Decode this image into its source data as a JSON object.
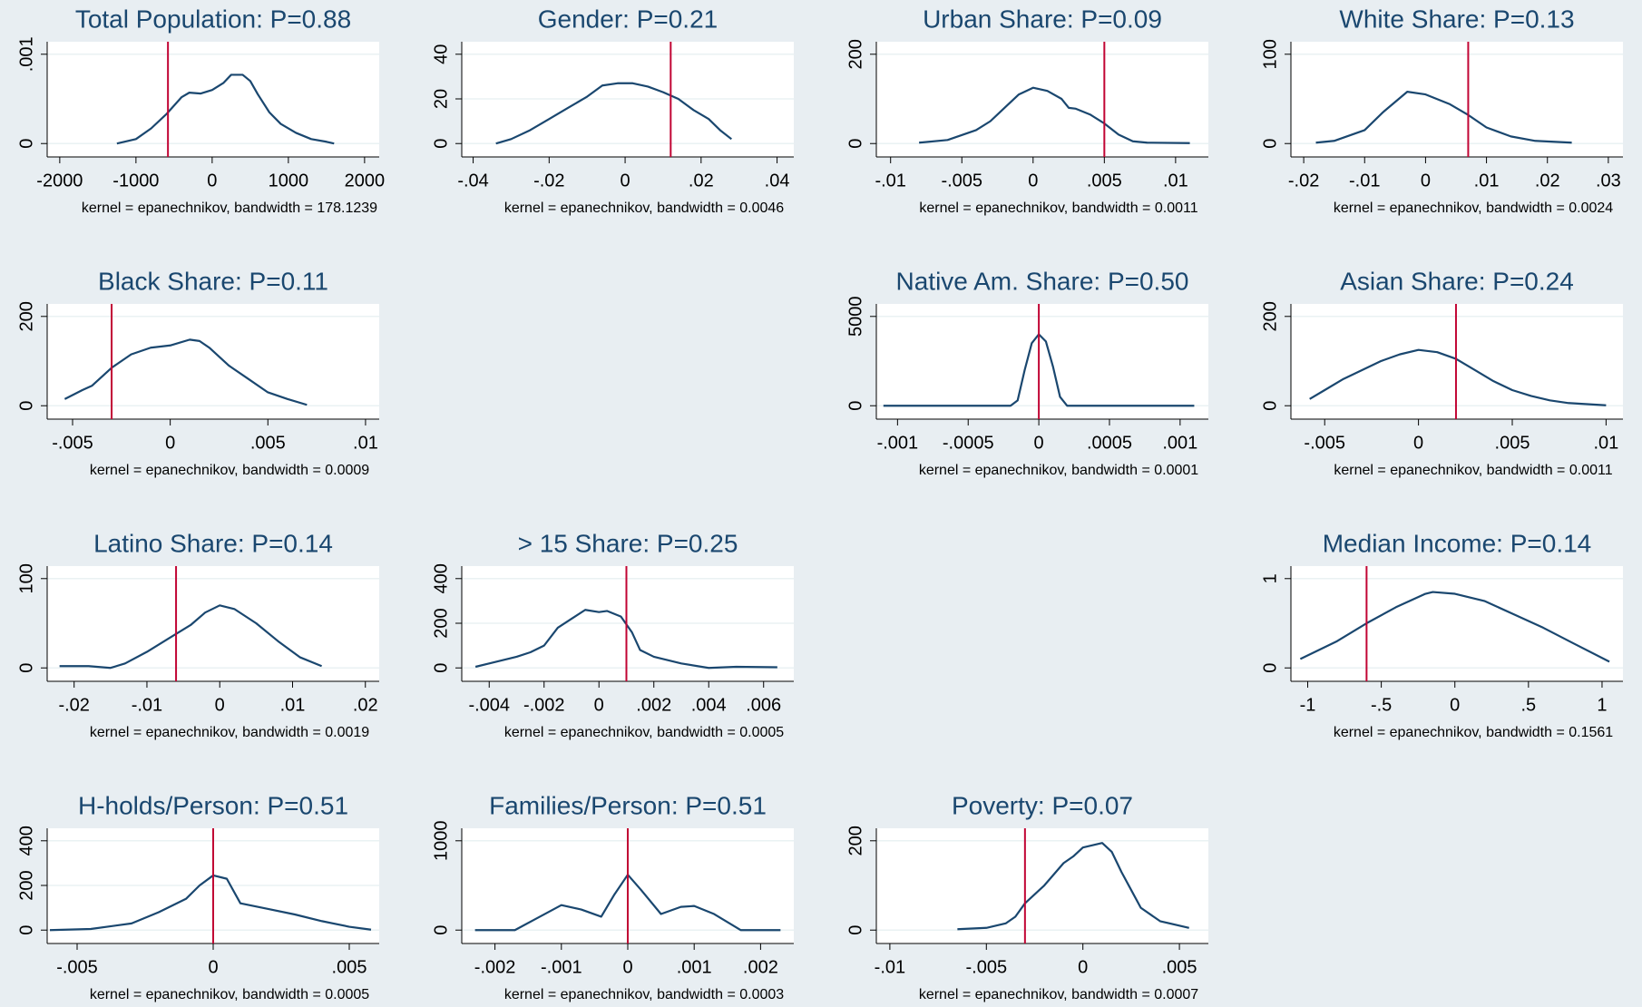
{
  "chart_data": [
    {
      "type": "line",
      "title": "Total Population: P=0.88",
      "note": "kernel = epanechnikov, bandwidth = 178.1239",
      "x": [
        -1250,
        -1000,
        -800,
        -600,
        -400,
        -300,
        -150,
        0,
        150,
        250,
        400,
        500,
        600,
        750,
        900,
        1100,
        1300,
        1500,
        1600
      ],
      "values": [
        0,
        5e-05,
        0.00017,
        0.00033,
        0.00052,
        0.00057,
        0.00056,
        0.0006,
        0.00068,
        0.00077,
        0.00077,
        0.0007,
        0.00055,
        0.00035,
        0.00022,
        0.00012,
        5e-05,
        2e-05,
        0
      ],
      "xlim": [
        -2165,
        2192
      ],
      "ylim": [
        -0.00015,
        0.00114
      ],
      "xticks": [
        -2000,
        -1000,
        0,
        1000,
        2000
      ],
      "yticks": [
        0,
        {
          "value": 0.001,
          "label": ".001"
        }
      ],
      "reference_line": -580,
      "color": "#1a476f",
      "reference_color": "#c10534",
      "grid": true
    },
    {
      "type": "line",
      "title": "Gender: P=0.21",
      "note": "kernel = epanechnikov, bandwidth = 0.0046",
      "x": [
        -0.034,
        -0.03,
        -0.025,
        -0.02,
        -0.015,
        -0.01,
        -0.006,
        -0.002,
        0.002,
        0.006,
        0.01,
        0.014,
        0.018,
        0.022,
        0.025,
        0.028
      ],
      "values": [
        0,
        2,
        6,
        11,
        16,
        21,
        26,
        27,
        27,
        25.5,
        23,
        20,
        15,
        11,
        6,
        2
      ],
      "xlim": [
        -0.043,
        0.0444
      ],
      "ylim": [
        -6,
        45.6
      ],
      "xticks": [
        {
          "value": -0.04,
          "label": "-.04"
        },
        {
          "value": -0.02,
          "label": "-.02"
        },
        0,
        {
          "value": 0.02,
          "label": ".02"
        },
        {
          "value": 0.04,
          "label": ".04"
        }
      ],
      "yticks": [
        0,
        20,
        40
      ],
      "reference_line": 0.012,
      "color": "#1a476f",
      "reference_color": "#c10534",
      "grid": true
    },
    {
      "type": "line",
      "title": "Urban Share: P=0.09",
      "note": "kernel = epanechnikov, bandwidth = 0.0011",
      "x": [
        -0.008,
        -0.006,
        -0.004,
        -0.003,
        -0.002,
        -0.001,
        0,
        0.001,
        0.002,
        0.0025,
        0.003,
        0.004,
        0.005,
        0.006,
        0.007,
        0.008,
        0.011
      ],
      "values": [
        2,
        8,
        30,
        50,
        80,
        110,
        125,
        118,
        100,
        80,
        78,
        65,
        45,
        20,
        5,
        2,
        1
      ],
      "xlim": [
        -0.011,
        0.0123
      ],
      "ylim": [
        -30,
        228
      ],
      "xticks": [
        {
          "value": -0.01,
          "label": "-.01"
        },
        {
          "value": -0.005,
          "label": "-.005"
        },
        0,
        {
          "value": 0.005,
          "label": ".005"
        },
        {
          "value": 0.01,
          "label": ".01"
        }
      ],
      "yticks": [
        0,
        200
      ],
      "reference_line": 0.005,
      "color": "#1a476f",
      "reference_color": "#c10534",
      "grid": true
    },
    {
      "type": "line",
      "title": "White Share: P=0.13",
      "note": "kernel = epanechnikov, bandwidth = 0.0024",
      "x": [
        -0.018,
        -0.015,
        -0.01,
        -0.007,
        -0.003,
        0,
        0.004,
        0.007,
        0.01,
        0.014,
        0.018,
        0.024
      ],
      "values": [
        1,
        3,
        15,
        35,
        58,
        55,
        44,
        32,
        18,
        8,
        3,
        1
      ],
      "xlim": [
        -0.0221,
        0.0324
      ],
      "ylim": [
        -15,
        114
      ],
      "xticks": [
        {
          "value": -0.02,
          "label": "-.02"
        },
        {
          "value": -0.01,
          "label": "-.01"
        },
        0,
        {
          "value": 0.01,
          "label": ".01"
        },
        {
          "value": 0.02,
          "label": ".02"
        },
        {
          "value": 0.03,
          "label": ".03"
        }
      ],
      "yticks": [
        0,
        100
      ],
      "reference_line": 0.007,
      "color": "#1a476f",
      "reference_color": "#c10534",
      "grid": true
    },
    {
      "type": "line",
      "title": "Black Share: P=0.11",
      "note": "kernel = epanechnikov, bandwidth = 0.0009",
      "x": [
        -0.0054,
        -0.0045,
        -0.004,
        -0.003,
        -0.002,
        -0.001,
        0,
        0.001,
        0.0015,
        0.002,
        0.003,
        0.004,
        0.005,
        0.006,
        0.007
      ],
      "values": [
        15,
        35,
        45,
        85,
        115,
        130,
        135,
        148,
        145,
        130,
        90,
        60,
        30,
        15,
        2
      ],
      "xlim": [
        -0.0063,
        0.0107
      ],
      "ylim": [
        -30,
        228
      ],
      "xticks": [
        {
          "value": -0.005,
          "label": "-.005"
        },
        0,
        {
          "value": 0.005,
          "label": ".005"
        },
        {
          "value": 0.01,
          "label": ".01"
        }
      ],
      "yticks": [
        0,
        200
      ],
      "reference_line": -0.003,
      "color": "#1a476f",
      "reference_color": "#c10534",
      "grid": true
    },
    {
      "type": "line",
      "title": "Native Am. Share: P=0.50",
      "note": "kernel = epanechnikov, bandwidth = 0.0001",
      "x": [
        -0.0011,
        -0.0002,
        -0.00015,
        -0.0001,
        -5e-05,
        0,
        5e-05,
        0.0001,
        0.00015,
        0.0002,
        0.0011
      ],
      "values": [
        0,
        0,
        300,
        2000,
        3500,
        4000,
        3600,
        2200,
        500,
        0,
        0
      ],
      "xlim": [
        -0.00115,
        0.0012
      ],
      "ylim": [
        -750,
        5700
      ],
      "xticks": [
        {
          "value": -0.001,
          "label": "-.001"
        },
        {
          "value": -0.0005,
          "label": "-.0005"
        },
        0,
        {
          "value": 0.0005,
          "label": ".0005"
        },
        {
          "value": 0.001,
          "label": ".001"
        }
      ],
      "yticks": [
        0,
        5000
      ],
      "reference_line": 0,
      "color": "#1a476f",
      "reference_color": "#c10534",
      "grid": true
    },
    {
      "type": "line",
      "title": "Asian Share: P=0.24",
      "note": "kernel = epanechnikov, bandwidth = 0.0011",
      "x": [
        -0.0058,
        -0.005,
        -0.004,
        -0.003,
        -0.002,
        -0.001,
        0,
        0.001,
        0.002,
        0.003,
        0.004,
        0.005,
        0.006,
        0.007,
        0.008,
        0.01
      ],
      "values": [
        15,
        35,
        60,
        80,
        100,
        115,
        125,
        120,
        105,
        80,
        55,
        35,
        22,
        12,
        6,
        1
      ],
      "xlim": [
        -0.0068,
        0.0109
      ],
      "ylim": [
        -30,
        228
      ],
      "xticks": [
        {
          "value": -0.005,
          "label": "-.005"
        },
        0,
        {
          "value": 0.005,
          "label": ".005"
        },
        {
          "value": 0.01,
          "label": ".01"
        }
      ],
      "yticks": [
        0,
        200
      ],
      "reference_line": 0.002,
      "color": "#1a476f",
      "reference_color": "#c10534",
      "grid": true
    },
    {
      "type": "line",
      "title": "Latino Share: P=0.14",
      "note": "kernel = epanechnikov, bandwidth = 0.0019",
      "x": [
        -0.022,
        -0.018,
        -0.015,
        -0.013,
        -0.01,
        -0.007,
        -0.004,
        -0.002,
        0,
        0.002,
        0.005,
        0.008,
        0.011,
        0.014
      ],
      "values": [
        2,
        2,
        0,
        5,
        18,
        33,
        48,
        62,
        70,
        66,
        50,
        30,
        12,
        2
      ],
      "xlim": [
        -0.0237,
        0.0219
      ],
      "ylim": [
        -15,
        114
      ],
      "xticks": [
        {
          "value": -0.02,
          "label": "-.02"
        },
        {
          "value": -0.01,
          "label": "-.01"
        },
        0,
        {
          "value": 0.01,
          "label": ".01"
        },
        {
          "value": 0.02,
          "label": ".02"
        }
      ],
      "yticks": [
        0,
        100
      ],
      "reference_line": -0.006,
      "color": "#1a476f",
      "reference_color": "#c10534",
      "grid": true
    },
    {
      "type": "line",
      "title": "> 15 Share: P=0.25",
      "note": "kernel = epanechnikov, bandwidth = 0.0005",
      "x": [
        -0.0045,
        -0.004,
        -0.003,
        -0.0025,
        -0.002,
        -0.0015,
        -0.001,
        -0.0005,
        0,
        0.0003,
        0.0008,
        0.0012,
        0.0015,
        0.002,
        0.003,
        0.004,
        0.005,
        0.0065
      ],
      "values": [
        5,
        20,
        50,
        70,
        100,
        180,
        220,
        260,
        250,
        255,
        230,
        160,
        80,
        50,
        20,
        0,
        5,
        3
      ],
      "xlim": [
        -0.005,
        0.0071
      ],
      "ylim": [
        -60,
        456
      ],
      "xticks": [
        {
          "value": -0.004,
          "label": "-.004"
        },
        {
          "value": -0.002,
          "label": "-.002"
        },
        0,
        {
          "value": 0.002,
          "label": ".002"
        },
        {
          "value": 0.004,
          "label": ".004"
        },
        {
          "value": 0.006,
          "label": ".006"
        }
      ],
      "yticks": [
        0,
        200,
        400
      ],
      "reference_line": 0.001,
      "color": "#1a476f",
      "reference_color": "#c10534",
      "grid": true
    },
    {
      "type": "line",
      "title": "Median Income: P=0.14",
      "note": "kernel = epanechnikov, bandwidth = 0.1561",
      "x": [
        -1.05,
        -0.8,
        -0.6,
        -0.4,
        -0.2,
        -0.15,
        0,
        0.2,
        0.4,
        0.6,
        0.8,
        1.05
      ],
      "values": [
        0.1,
        0.3,
        0.5,
        0.68,
        0.83,
        0.85,
        0.83,
        0.75,
        0.6,
        0.45,
        0.28,
        0.07
      ],
      "xlim": [
        -1.114,
        1.142
      ],
      "ylim": [
        -0.15,
        1.14
      ],
      "xticks": [
        -1,
        {
          "value": -0.5,
          "label": "-.5"
        },
        0,
        {
          "value": 0.5,
          "label": ".5"
        },
        1
      ],
      "yticks": [
        0,
        1
      ],
      "reference_line": -0.6,
      "color": "#1a476f",
      "reference_color": "#c10534",
      "grid": true
    },
    {
      "type": "line",
      "title": "H-holds/Person: P=0.51",
      "note": "kernel = epanechnikov, bandwidth = 0.0005",
      "x": [
        -0.006,
        -0.0045,
        -0.003,
        -0.002,
        -0.001,
        -0.0005,
        0,
        0.0005,
        0.001,
        0.002,
        0.003,
        0.004,
        0.005,
        0.0058
      ],
      "values": [
        0,
        5,
        30,
        80,
        140,
        200,
        245,
        230,
        120,
        95,
        70,
        40,
        15,
        2
      ],
      "xlim": [
        -0.0061,
        0.0061
      ],
      "ylim": [
        -60,
        456
      ],
      "xticks": [
        {
          "value": -0.005,
          "label": "-.005"
        },
        0,
        {
          "value": 0.005,
          "label": ".005"
        }
      ],
      "yticks": [
        0,
        200,
        400
      ],
      "reference_line": 0,
      "color": "#1a476f",
      "reference_color": "#c10534",
      "grid": true
    },
    {
      "type": "line",
      "title": "Families/Person: P=0.51",
      "note": "kernel = epanechnikov, bandwidth = 0.0003",
      "x": [
        -0.0023,
        -0.0017,
        -0.0014,
        -0.001,
        -0.0007,
        -0.0004,
        -0.0002,
        0,
        0.0002,
        0.0005,
        0.0008,
        0.001,
        0.0013,
        0.0017,
        0.0023
      ],
      "values": [
        0,
        0,
        120,
        280,
        230,
        150,
        400,
        620,
        450,
        180,
        260,
        270,
        180,
        0,
        0
      ],
      "xlim": [
        -0.0025,
        0.0025
      ],
      "ylim": [
        -150,
        1140
      ],
      "xticks": [
        {
          "value": -0.002,
          "label": "-.002"
        },
        {
          "value": -0.001,
          "label": "-.001"
        },
        0,
        {
          "value": 0.001,
          "label": ".001"
        },
        {
          "value": 0.002,
          "label": ".002"
        }
      ],
      "yticks": [
        0,
        1000
      ],
      "reference_line": 0,
      "color": "#1a476f",
      "reference_color": "#c10534",
      "grid": true
    },
    {
      "type": "line",
      "title": "Poverty: P=0.07",
      "note": "kernel = epanechnikov, bandwidth = 0.0007",
      "x": [
        -0.0065,
        -0.005,
        -0.004,
        -0.0035,
        -0.003,
        -0.002,
        -0.001,
        -0.0005,
        0,
        0.0005,
        0.001,
        0.0015,
        0.002,
        0.0025,
        0.003,
        0.004,
        0.0055
      ],
      "values": [
        2,
        5,
        15,
        30,
        60,
        100,
        150,
        165,
        185,
        190,
        195,
        175,
        130,
        90,
        50,
        20,
        5
      ],
      "xlim": [
        -0.0107,
        0.0065
      ],
      "ylim": [
        -30,
        228
      ],
      "xticks": [
        {
          "value": -0.01,
          "label": "-.01"
        },
        {
          "value": -0.005,
          "label": "-.005"
        },
        0,
        {
          "value": 0.005,
          "label": ".005"
        }
      ],
      "yticks": [
        0,
        200
      ],
      "reference_line": -0.003,
      "color": "#1a476f",
      "reference_color": "#c10534",
      "grid": true
    }
  ]
}
